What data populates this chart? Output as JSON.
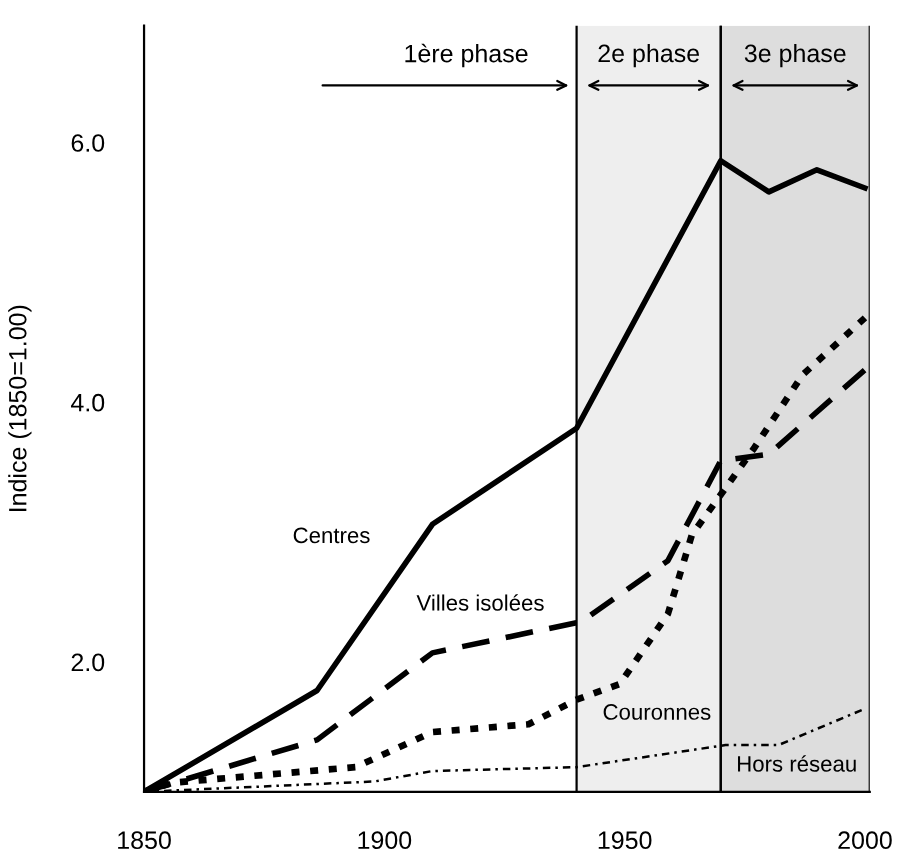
{
  "chart_data": {
    "type": "line",
    "ylabel": "Indice (1850=1.00)",
    "xlim": [
      1850,
      2001
    ],
    "ylim": [
      1.0,
      6.9
    ],
    "xticks": [
      1850,
      1900,
      1950,
      2000
    ],
    "yticks": [
      {
        "value": 2,
        "label": "2.0"
      },
      {
        "value": 4,
        "label": "4.0"
      },
      {
        "value": 6,
        "label": "6.0"
      }
    ],
    "grid": false,
    "legend": false,
    "marker": "none",
    "annotations": [
      "1ère phase"
    ],
    "series": [
      {
        "name": "Centres",
        "color": "#000000",
        "line_style": "solid",
        "x": [
          1850,
          1886,
          1910,
          1940,
          1970,
          1980,
          1990,
          2000
        ],
        "values": [
          1.0,
          1.78,
          3.06,
          3.8,
          5.86,
          5.62,
          5.79,
          5.65
        ]
      },
      {
        "name": "Villes isolées",
        "color": "#000000",
        "line_style": "dashed",
        "x": [
          1850,
          1886,
          1910,
          1941,
          1959,
          1970,
          1980,
          2000
        ],
        "values": [
          1.0,
          1.4,
          2.07,
          2.31,
          2.78,
          3.55,
          3.6,
          4.25
        ]
      },
      {
        "name": "Couronnes",
        "color": "#000000",
        "line_style": "dotted",
        "x": [
          1850,
          1856,
          1894,
          1910,
          1930,
          1940,
          1949,
          1959,
          1964,
          1971,
          1977,
          1987,
          2000
        ],
        "values": [
          1.0,
          1.07,
          1.19,
          1.46,
          1.52,
          1.71,
          1.83,
          2.37,
          2.98,
          3.34,
          3.65,
          4.21,
          4.65
        ]
      },
      {
        "name": "Hors réseau",
        "color": "#000000",
        "line_style": "dashdot",
        "x": [
          1850,
          1898,
          1910,
          1940,
          1971,
          1982,
          2000
        ],
        "values": [
          1.0,
          1.08,
          1.16,
          1.19,
          1.36,
          1.36,
          1.64
        ]
      }
    ],
    "bands": [
      {
        "axis": "x",
        "from": 1940,
        "to": 1970,
        "label": "2e phase",
        "color": "#eeeeee"
      },
      {
        "axis": "x",
        "from": 1970,
        "to": 2001,
        "label": "3e phase",
        "color": "#dddddd"
      }
    ]
  }
}
